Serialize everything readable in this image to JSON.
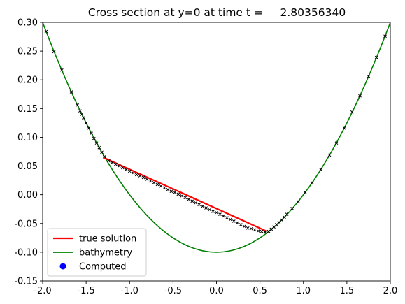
{
  "chart_data": {
    "type": "line",
    "title": "Cross section at y=0 at time t =     2.80356340",
    "xlabel": "",
    "ylabel": "",
    "xlim": [
      -2.0,
      2.0
    ],
    "ylim": [
      -0.15,
      0.3
    ],
    "xticks": [
      "-2.0",
      "-1.5",
      "-1.0",
      "-0.5",
      "0.0",
      "0.5",
      "1.0",
      "1.5",
      "2.0"
    ],
    "yticks": [
      "-0.15",
      "-0.10",
      "-0.05",
      "0.00",
      "0.05",
      "0.10",
      "0.15",
      "0.20",
      "0.25",
      "0.30"
    ],
    "grid": false,
    "legend_position": "lower-left",
    "legend": [
      "true solution",
      "bathymetry",
      "Computed"
    ],
    "colors": {
      "true_solution": "#ff0000",
      "bathymetry": "#008000",
      "computed": "#0000ff",
      "markers": "#000000"
    },
    "series": [
      {
        "name": "true solution",
        "style": "line",
        "x": [
          -1.29,
          0.57
        ],
        "y": [
          0.064,
          -0.063
        ]
      },
      {
        "name": "bathymetry",
        "style": "line",
        "function": "0.1*x^2 - 0.1",
        "x": [
          -2.0,
          -1.5,
          -1.0,
          -0.5,
          0.0,
          0.5,
          1.0,
          1.5,
          2.0
        ],
        "y": [
          0.3,
          0.125,
          0.0,
          -0.075,
          -0.1,
          -0.075,
          0.0,
          0.125,
          0.3
        ]
      },
      {
        "name": "Computed",
        "style": "markers",
        "x": [
          -1.96,
          -1.87,
          -1.78,
          -1.67,
          -1.6,
          -1.57,
          -1.55,
          -1.53,
          -1.5,
          -1.47,
          -1.44,
          -1.41,
          -1.38,
          -1.35,
          -1.32,
          -1.29,
          -1.24,
          -1.2,
          -1.16,
          -1.12,
          -1.08,
          -1.04,
          -1.0,
          -0.96,
          -0.92,
          -0.88,
          -0.84,
          -0.8,
          -0.76,
          -0.72,
          -0.68,
          -0.64,
          -0.6,
          -0.56,
          -0.52,
          -0.48,
          -0.44,
          -0.4,
          -0.36,
          -0.32,
          -0.28,
          -0.24,
          -0.2,
          -0.16,
          -0.12,
          -0.08,
          -0.04,
          0.0,
          0.04,
          0.08,
          0.12,
          0.16,
          0.2,
          0.24,
          0.28,
          0.32,
          0.36,
          0.4,
          0.44,
          0.48,
          0.52,
          0.56,
          0.6,
          0.63,
          0.66,
          0.69,
          0.72,
          0.75,
          0.78,
          0.81,
          0.87,
          0.94,
          1.02,
          1.1,
          1.2,
          1.3,
          1.38,
          1.47,
          1.56,
          1.65,
          1.75,
          1.84,
          1.94
        ],
        "y": [
          0.284,
          0.249,
          0.217,
          0.179,
          0.156,
          0.146,
          0.14,
          0.134,
          0.125,
          0.116,
          0.107,
          0.098,
          0.09,
          0.082,
          0.074,
          0.066,
          0.059,
          0.056,
          0.053,
          0.05,
          0.047,
          0.044,
          0.041,
          0.038,
          0.035,
          0.033,
          0.03,
          0.027,
          0.024,
          0.021,
          0.018,
          0.015,
          0.012,
          0.009,
          0.006,
          0.004,
          0.001,
          -0.002,
          -0.005,
          -0.008,
          -0.011,
          -0.014,
          -0.017,
          -0.02,
          -0.023,
          -0.026,
          -0.029,
          -0.031,
          -0.034,
          -0.037,
          -0.04,
          -0.043,
          -0.046,
          -0.049,
          -0.052,
          -0.055,
          -0.058,
          -0.059,
          -0.061,
          -0.063,
          -0.064,
          -0.065,
          -0.064,
          -0.06,
          -0.056,
          -0.052,
          -0.048,
          -0.044,
          -0.039,
          -0.034,
          -0.024,
          -0.012,
          0.004,
          0.021,
          0.044,
          0.069,
          0.09,
          0.116,
          0.144,
          0.172,
          0.206,
          0.239,
          0.276
        ]
      }
    ]
  }
}
